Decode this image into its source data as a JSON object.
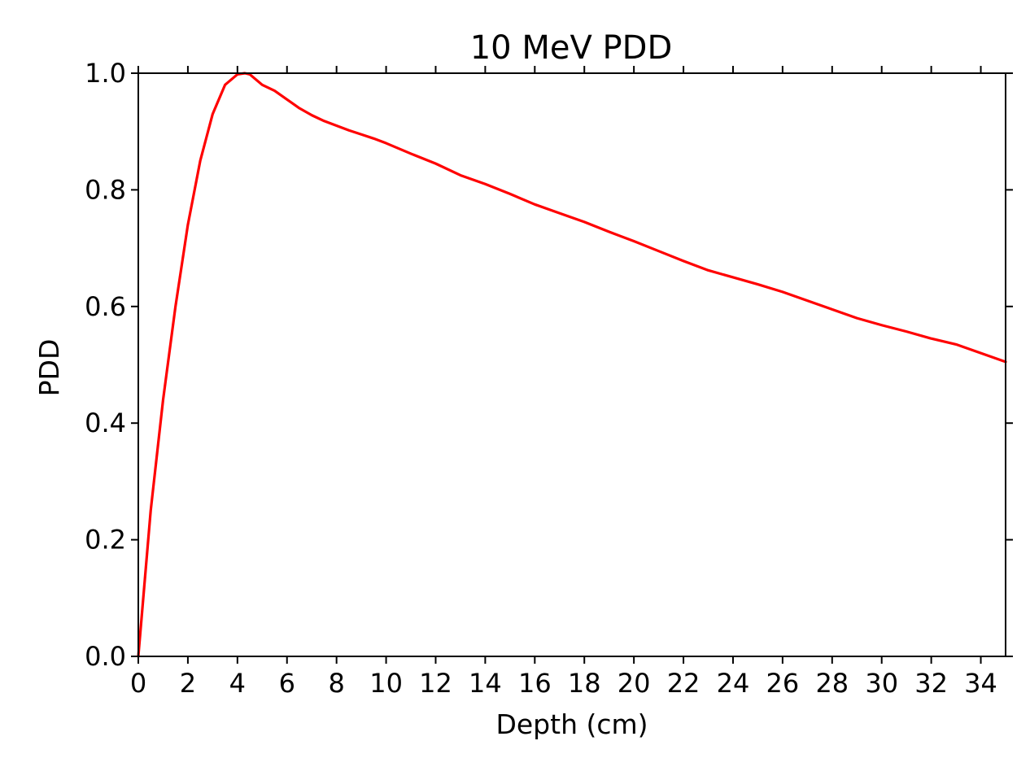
{
  "chart_data": {
    "type": "line",
    "title": "10 MeV PDD",
    "xlabel": "Depth (cm)",
    "ylabel": "PDD",
    "xlim": [
      0,
      35
    ],
    "ylim": [
      0,
      1.0
    ],
    "xticks": [
      0,
      2,
      4,
      6,
      8,
      10,
      12,
      14,
      16,
      18,
      20,
      22,
      24,
      26,
      28,
      30,
      32,
      34
    ],
    "yticks": [
      0.0,
      0.2,
      0.4,
      0.6,
      0.8,
      1.0
    ],
    "ytick_labels": [
      "0.0",
      "0.2",
      "0.4",
      "0.6",
      "0.8",
      "1.0"
    ],
    "grid": false,
    "series": [
      {
        "color": "#ff0000",
        "x": [
          0,
          0.5,
          1,
          1.5,
          2,
          2.5,
          3,
          3.5,
          4,
          4.3,
          4.5,
          5,
          5.5,
          6,
          6.5,
          7,
          7.5,
          8,
          8.5,
          9,
          9.5,
          10,
          11,
          12,
          13,
          14,
          15,
          16,
          17,
          18,
          19,
          20,
          21,
          22,
          23,
          24,
          25,
          26,
          27,
          28,
          29,
          30,
          31,
          32,
          33,
          34,
          35
        ],
        "y": [
          0.0,
          0.25,
          0.44,
          0.6,
          0.74,
          0.85,
          0.93,
          0.98,
          0.998,
          1.0,
          0.998,
          0.98,
          0.97,
          0.955,
          0.94,
          0.928,
          0.918,
          0.91,
          0.902,
          0.895,
          0.888,
          0.88,
          0.862,
          0.845,
          0.825,
          0.81,
          0.793,
          0.775,
          0.76,
          0.745,
          0.728,
          0.712,
          0.695,
          0.678,
          0.662,
          0.65,
          0.638,
          0.625,
          0.61,
          0.595,
          0.58,
          0.568,
          0.557,
          0.545,
          0.535,
          0.52,
          0.505
        ]
      }
    ]
  }
}
